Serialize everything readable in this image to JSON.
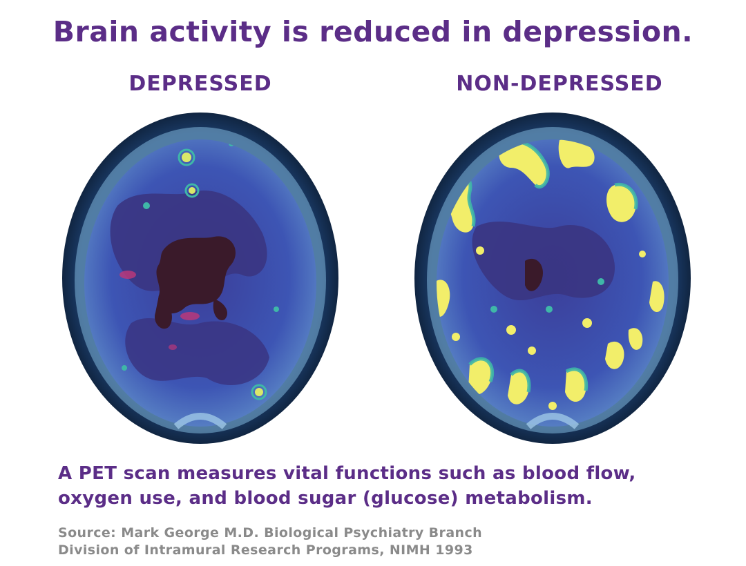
{
  "title": "Brain activity is reduced in depression.",
  "panels": {
    "left_label": "DEPRESSED",
    "right_label": "NON-DEPRESSED"
  },
  "caption": {
    "line1": "A PET scan measures vital functions such as blood flow,",
    "line2": "oxygen use, and blood sugar (glucose) metabolism."
  },
  "source": {
    "line1": "Source: Mark George M.D. Biological Psychiatry Branch",
    "line2": "Division of Intramural Research Programs, NIMH 1993"
  },
  "colors": {
    "heading": "#5b2d87",
    "source_text": "#8a8a8a",
    "brain_base": "#3c46a8",
    "brain_low": "#4a2f6e",
    "inactive_core": "#3a1a2a",
    "active_high": "#f2ee6a",
    "active_mid": "#3fb7a8",
    "skull_rim": "#0b1a2e"
  }
}
